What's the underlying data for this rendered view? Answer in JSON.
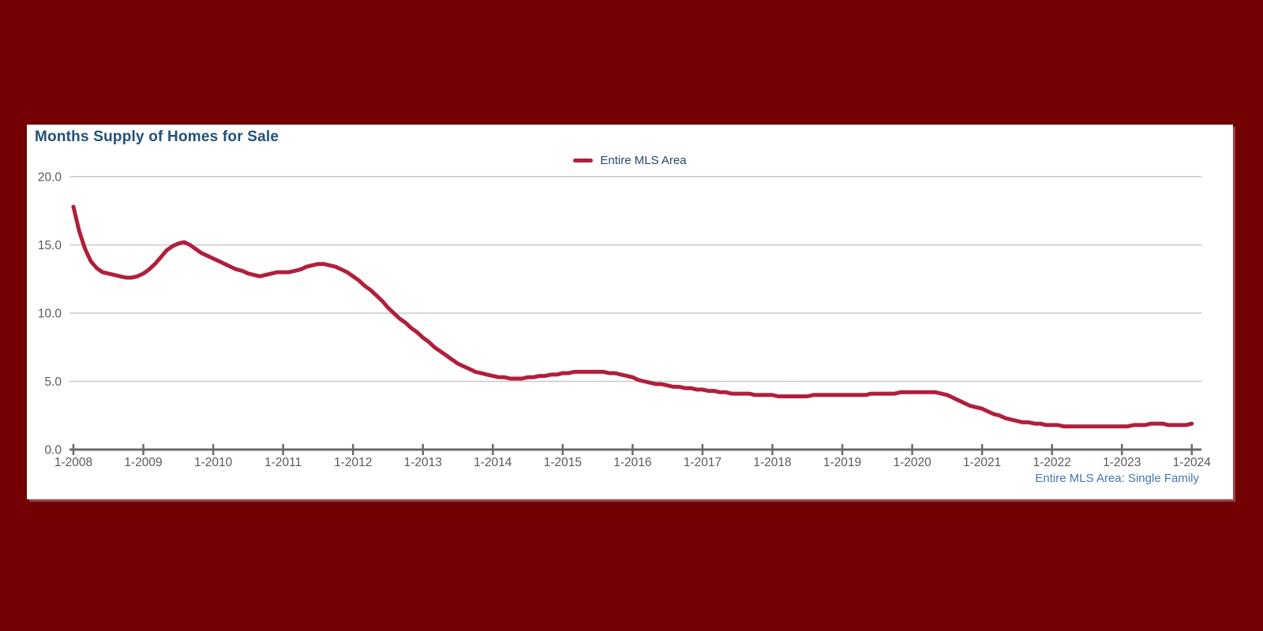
{
  "app": {
    "background_color": "#730003"
  },
  "panel": {
    "background_color": "#FFFFFF"
  },
  "header": {
    "title": "Months Supply of Homes for Sale",
    "title_color": "#235179"
  },
  "legend": {
    "label": "Entire MLS Area",
    "marker_color": "#B01F3B",
    "label_color": "#24466B"
  },
  "footer": {
    "note": "Entire MLS Area: Single Family",
    "color": "#4477B3"
  },
  "chart_data": {
    "type": "line",
    "title": "Months Supply of Homes for Sale",
    "xlabel": "",
    "ylabel": "",
    "frequency": "monthly",
    "x_start": "2008-01",
    "x_end": "2024-01",
    "x_tick_labels": [
      "1-2008",
      "1-2009",
      "1-2010",
      "1-2011",
      "1-2012",
      "1-2013",
      "1-2014",
      "1-2015",
      "1-2016",
      "1-2017",
      "1-2018",
      "1-2019",
      "1-2020",
      "1-2021",
      "1-2022",
      "1-2023",
      "1-2024"
    ],
    "y_ticks": [
      0,
      5,
      10,
      15,
      20
    ],
    "y_tick_labels": [
      "0.0",
      "5.0",
      "10.0",
      "15.0",
      "20.0"
    ],
    "ylim": [
      0,
      20
    ],
    "grid": "horizontal",
    "legend_position": "top-center",
    "colors": {
      "axis": "#6B6B6B",
      "grid": "#C8C8C8",
      "tick_labels": "#595959"
    },
    "series": [
      {
        "name": "Entire MLS Area",
        "color": "#B01F3B",
        "monthly_values": [
          17.8,
          16.0,
          14.7,
          13.8,
          13.3,
          13.0,
          12.9,
          12.8,
          12.7,
          12.6,
          12.6,
          12.7,
          12.9,
          13.2,
          13.6,
          14.1,
          14.6,
          14.9,
          15.1,
          15.2,
          15.0,
          14.7,
          14.4,
          14.2,
          14.0,
          13.8,
          13.6,
          13.4,
          13.2,
          13.1,
          12.9,
          12.8,
          12.7,
          12.8,
          12.9,
          13.0,
          13.0,
          13.0,
          13.1,
          13.2,
          13.4,
          13.5,
          13.6,
          13.6,
          13.5,
          13.4,
          13.2,
          13.0,
          12.7,
          12.4,
          12.0,
          11.7,
          11.3,
          10.9,
          10.4,
          10.0,
          9.6,
          9.3,
          8.9,
          8.6,
          8.2,
          7.9,
          7.5,
          7.2,
          6.9,
          6.6,
          6.3,
          6.1,
          5.9,
          5.7,
          5.6,
          5.5,
          5.4,
          5.3,
          5.3,
          5.2,
          5.2,
          5.2,
          5.3,
          5.3,
          5.4,
          5.4,
          5.5,
          5.5,
          5.6,
          5.6,
          5.7,
          5.7,
          5.7,
          5.7,
          5.7,
          5.7,
          5.6,
          5.6,
          5.5,
          5.4,
          5.3,
          5.1,
          5.0,
          4.9,
          4.8,
          4.8,
          4.7,
          4.6,
          4.6,
          4.5,
          4.5,
          4.4,
          4.4,
          4.3,
          4.3,
          4.2,
          4.2,
          4.1,
          4.1,
          4.1,
          4.1,
          4.0,
          4.0,
          4.0,
          4.0,
          3.9,
          3.9,
          3.9,
          3.9,
          3.9,
          3.9,
          4.0,
          4.0,
          4.0,
          4.0,
          4.0,
          4.0,
          4.0,
          4.0,
          4.0,
          4.0,
          4.1,
          4.1,
          4.1,
          4.1,
          4.1,
          4.2,
          4.2,
          4.2,
          4.2,
          4.2,
          4.2,
          4.2,
          4.1,
          4.0,
          3.8,
          3.6,
          3.4,
          3.2,
          3.1,
          3.0,
          2.8,
          2.6,
          2.5,
          2.3,
          2.2,
          2.1,
          2.0,
          2.0,
          1.9,
          1.9,
          1.8,
          1.8,
          1.8,
          1.7,
          1.7,
          1.7,
          1.7,
          1.7,
          1.7,
          1.7,
          1.7,
          1.7,
          1.7,
          1.7,
          1.7,
          1.8,
          1.8,
          1.8,
          1.9,
          1.9,
          1.9,
          1.8,
          1.8,
          1.8,
          1.8,
          1.9
        ]
      }
    ]
  }
}
